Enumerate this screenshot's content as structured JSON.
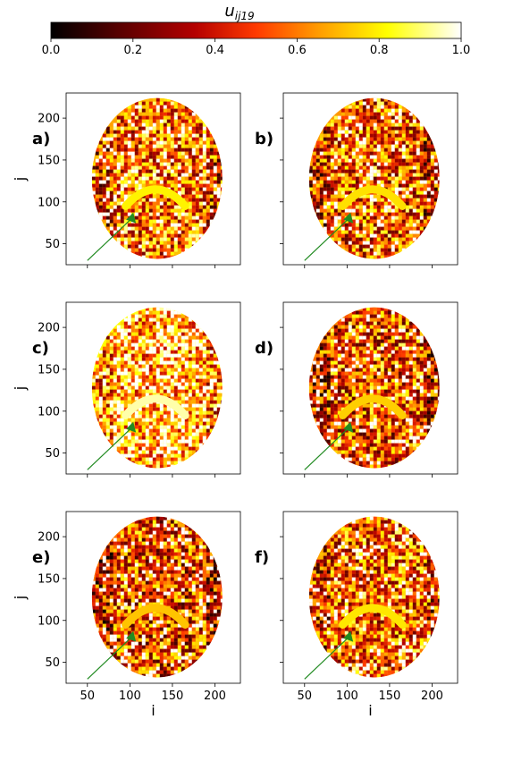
{
  "colorbar": {
    "title_main": "u",
    "title_sub": "ij19",
    "ticks": [
      "0.0",
      "0.2",
      "0.4",
      "0.6",
      "0.8",
      "1.0"
    ],
    "colormap": [
      "#000000",
      "#5a0000",
      "#b40000",
      "#ff3a00",
      "#ff9a00",
      "#ffff00",
      "#ffffff"
    ]
  },
  "axes": {
    "x_label": "i",
    "y_label": "j",
    "x_ticks": [
      "50",
      "100",
      "150",
      "200"
    ],
    "y_ticks": [
      "50",
      "100",
      "150",
      "200"
    ]
  },
  "panels": [
    {
      "letter": "a)"
    },
    {
      "letter": "b)"
    },
    {
      "letter": "c)"
    },
    {
      "letter": "d)"
    },
    {
      "letter": "e)"
    },
    {
      "letter": "f)"
    }
  ],
  "arrow_color": "#228b22"
}
